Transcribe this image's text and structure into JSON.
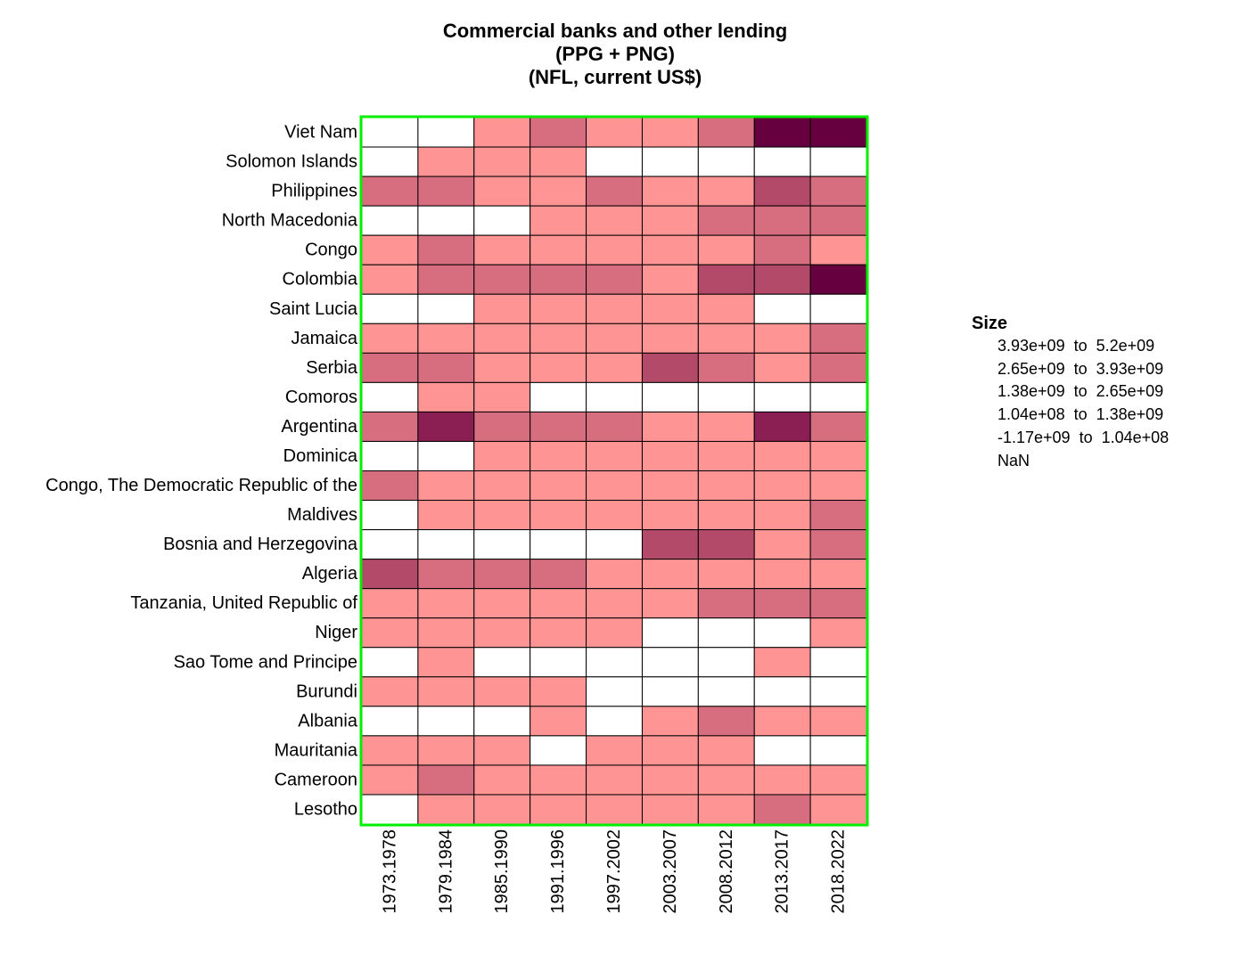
{
  "chart_data": {
    "type": "heatmap",
    "title": "Commercial banks and other lending",
    "subtitle_lines": [
      "(PPG + PNG)",
      "(NFL, current US$)"
    ],
    "columns": [
      "1973.1978",
      "1979.1984",
      "1985.1990",
      "1991.1996",
      "1997.2002",
      "2003.2007",
      "2008.2012",
      "2013.2017",
      "2018.2022"
    ],
    "rows": [
      "Viet Nam",
      "Solomon Islands",
      "Philippines",
      "North Macedonia",
      "Congo",
      "Colombia",
      "Saint Lucia",
      "Jamaica",
      "Serbia",
      "Comoros",
      "Argentina",
      "Dominica",
      "Congo, The Democratic Republic of the",
      "Maldives",
      "Bosnia and Herzegovina",
      "Algeria",
      "Tanzania, United Republic of",
      "Niger",
      "Sao Tome and Principe",
      "Burundi",
      "Albania",
      "Mauritania",
      "Cameroon",
      "Lesotho"
    ],
    "legend_title": "Size",
    "legend_bins": [
      {
        "label": "3.93e+09  to  5.2e+09",
        "color": "#67003f"
      },
      {
        "label": "2.65e+09  to  3.93e+09",
        "color": "#8b1f54"
      },
      {
        "label": "1.38e+09  to  2.65e+09",
        "color": "#b34a69"
      },
      {
        "label": "1.04e+08  to  1.38e+09",
        "color": "#d66e7f"
      },
      {
        "label": "-1.17e+09  to  1.04e+08",
        "color": "#ff9494"
      },
      {
        "label": "NaN",
        "color": "#ffffff"
      }
    ],
    "cell_bins": [
      [
        5,
        5,
        4,
        3,
        4,
        4,
        3,
        0,
        0
      ],
      [
        5,
        4,
        4,
        4,
        5,
        5,
        5,
        5,
        5
      ],
      [
        3,
        3,
        4,
        4,
        3,
        4,
        4,
        2,
        3
      ],
      [
        5,
        5,
        5,
        4,
        4,
        4,
        3,
        3,
        3
      ],
      [
        4,
        3,
        4,
        4,
        4,
        4,
        4,
        3,
        4
      ],
      [
        4,
        3,
        3,
        3,
        3,
        4,
        2,
        2,
        0
      ],
      [
        5,
        5,
        4,
        4,
        4,
        4,
        4,
        5,
        5
      ],
      [
        4,
        4,
        4,
        4,
        4,
        4,
        4,
        4,
        3
      ],
      [
        3,
        3,
        4,
        4,
        4,
        2,
        3,
        4,
        3
      ],
      [
        5,
        4,
        4,
        5,
        5,
        5,
        5,
        5,
        5
      ],
      [
        3,
        1,
        3,
        3,
        3,
        4,
        4,
        1,
        3
      ],
      [
        5,
        5,
        4,
        4,
        4,
        4,
        4,
        4,
        4
      ],
      [
        3,
        4,
        4,
        4,
        4,
        4,
        4,
        4,
        4
      ],
      [
        5,
        4,
        4,
        4,
        4,
        4,
        4,
        4,
        3
      ],
      [
        5,
        5,
        5,
        5,
        5,
        2,
        2,
        4,
        3
      ],
      [
        2,
        3,
        3,
        3,
        4,
        4,
        4,
        4,
        4
      ],
      [
        4,
        4,
        4,
        4,
        4,
        4,
        3,
        3,
        3
      ],
      [
        4,
        4,
        4,
        4,
        4,
        5,
        5,
        5,
        4
      ],
      [
        5,
        4,
        5,
        5,
        5,
        5,
        5,
        4,
        5
      ],
      [
        4,
        4,
        4,
        4,
        5,
        5,
        5,
        5,
        5
      ],
      [
        5,
        5,
        5,
        4,
        5,
        4,
        3,
        4,
        4
      ],
      [
        4,
        4,
        4,
        5,
        4,
        4,
        4,
        5,
        5
      ],
      [
        4,
        3,
        4,
        4,
        4,
        4,
        4,
        4,
        4
      ],
      [
        5,
        4,
        4,
        4,
        4,
        4,
        4,
        3,
        4
      ]
    ],
    "frame_color": "#00ee00",
    "grid_color": "#000000"
  }
}
